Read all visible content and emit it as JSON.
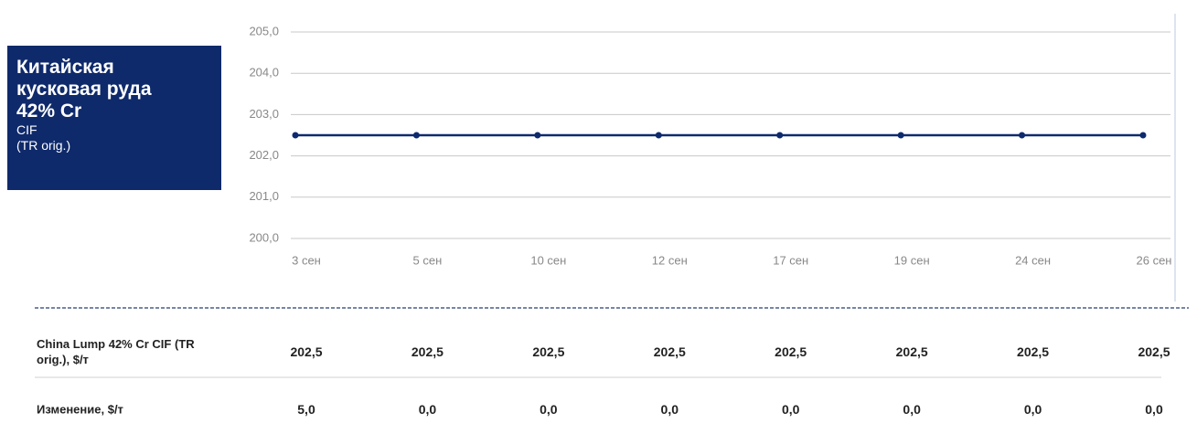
{
  "chart_data": {
    "type": "line",
    "title": "Китайская кусковая руда 42% Cr",
    "subtitle": "CIF",
    "note": "(TR orig.)",
    "categories": [
      "3 сен",
      "5 сен",
      "10 сен",
      "12 сен",
      "17 сен",
      "19 сен",
      "24 сен",
      "26 сен"
    ],
    "values": [
      202.5,
      202.5,
      202.5,
      202.5,
      202.5,
      202.5,
      202.5,
      202.5
    ],
    "color": "#0e2a6e",
    "ylim": [
      200,
      205
    ],
    "yticks": [
      {
        "value": 200,
        "label": "200,0"
      },
      {
        "value": 201,
        "label": "201,0"
      },
      {
        "value": 202,
        "label": "202,0"
      },
      {
        "value": 203,
        "label": "203,0"
      },
      {
        "value": 204,
        "label": "204,0"
      },
      {
        "value": 205,
        "label": "205,0"
      }
    ],
    "grid": true
  },
  "table": {
    "rows": [
      {
        "label": "China Lump 42% Cr CIF (TR orig.), $/т",
        "cells": [
          "202,5",
          "202,5",
          "202,5",
          "202,5",
          "202,5",
          "202,5",
          "202,5",
          "202,5"
        ]
      },
      {
        "label": "Изменение, $/т",
        "cells": [
          "5,0",
          "0,0",
          "0,0",
          "0,0",
          "0,0",
          "0,0",
          "0,0",
          "0,0"
        ]
      }
    ]
  }
}
